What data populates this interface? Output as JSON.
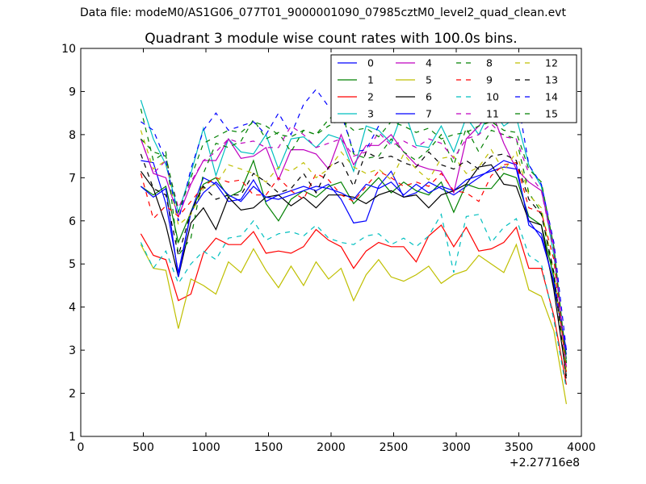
{
  "header": {
    "data_file": "Data file: modeM0/AS1G06_077T01_9000001090_07985cztM0_level2_quad_clean.evt"
  },
  "chart_data": {
    "type": "line",
    "title": "Quadrant 3 module wise count rates with 100.0s bins.",
    "xlabel": "",
    "ylabel": "",
    "xlim": [
      0,
      4000
    ],
    "ylim": [
      1,
      10
    ],
    "x_offset_label": "+2.27716e8",
    "x_ticks": [
      0,
      500,
      1000,
      1500,
      2000,
      2500,
      3000,
      3500,
      4000
    ],
    "y_ticks": [
      1,
      2,
      3,
      4,
      5,
      6,
      7,
      8,
      9,
      10
    ],
    "grid": false,
    "legend_position": "top-right",
    "x": [
      480,
      580,
      680,
      780,
      880,
      980,
      1080,
      1180,
      1280,
      1380,
      1480,
      1580,
      1680,
      1780,
      1880,
      1980,
      2080,
      2180,
      2280,
      2380,
      2480,
      2580,
      2680,
      2780,
      2880,
      2980,
      3080,
      3180,
      3280,
      3380,
      3480,
      3580,
      3680,
      3780,
      3880
    ],
    "series": [
      {
        "name": "0",
        "color": "#0000ff",
        "dash": "solid",
        "values": [
          7.4,
          7.35,
          6.4,
          4.8,
          6.2,
          7.0,
          6.85,
          6.45,
          6.5,
          6.95,
          6.45,
          6.6,
          6.7,
          6.8,
          6.7,
          6.85,
          6.5,
          5.95,
          6.0,
          6.8,
          7.15,
          6.55,
          6.65,
          6.9,
          6.75,
          6.6,
          6.8,
          7.0,
          7.2,
          7.4,
          7.3,
          5.9,
          5.7,
          4.5,
          2.9
        ]
      },
      {
        "name": "1",
        "color": "#008000",
        "dash": "solid",
        "values": [
          6.8,
          6.6,
          6.8,
          5.5,
          6.2,
          6.85,
          7.0,
          6.55,
          6.7,
          7.4,
          6.4,
          6.0,
          6.5,
          6.7,
          6.55,
          6.8,
          6.9,
          6.4,
          6.7,
          7.0,
          6.65,
          6.9,
          6.7,
          6.6,
          6.9,
          6.2,
          6.85,
          6.75,
          6.75,
          7.1,
          7.0,
          6.1,
          5.9,
          4.7,
          2.8
        ]
      },
      {
        "name": "2",
        "color": "#ff0000",
        "dash": "solid",
        "values": [
          5.7,
          5.2,
          5.1,
          4.15,
          4.3,
          5.25,
          5.6,
          5.45,
          5.45,
          5.75,
          5.25,
          5.3,
          5.25,
          5.4,
          5.8,
          5.55,
          5.4,
          4.9,
          5.3,
          5.5,
          5.4,
          5.4,
          5.05,
          5.65,
          5.9,
          5.4,
          5.85,
          5.3,
          5.35,
          5.5,
          5.85,
          4.9,
          4.9,
          3.8,
          2.2
        ]
      },
      {
        "name": "3",
        "color": "#00bfbf",
        "dash": "solid",
        "values": [
          8.8,
          7.9,
          7.3,
          6.2,
          7.1,
          8.15,
          7.05,
          7.9,
          7.6,
          7.55,
          8.0,
          7.2,
          7.9,
          7.95,
          7.7,
          8.0,
          7.9,
          7.15,
          8.2,
          8.1,
          7.8,
          8.6,
          7.75,
          7.7,
          8.2,
          7.6,
          8.4,
          8.0,
          8.6,
          8.2,
          8.4,
          7.3,
          6.8,
          5.2,
          2.7
        ]
      },
      {
        "name": "4",
        "color": "#bf00bf",
        "dash": "solid",
        "values": [
          7.9,
          7.1,
          7.0,
          6.1,
          6.85,
          7.4,
          7.4,
          7.9,
          7.45,
          7.5,
          7.7,
          6.95,
          7.65,
          7.65,
          7.55,
          7.2,
          8.0,
          7.3,
          7.75,
          7.75,
          8.0,
          7.6,
          7.3,
          7.2,
          7.15,
          6.65,
          7.9,
          8.2,
          8.55,
          7.8,
          7.2,
          6.9,
          6.7,
          5.4,
          2.6
        ]
      },
      {
        "name": "5",
        "color": "#bfbf00",
        "dash": "solid",
        "values": [
          5.45,
          4.9,
          4.85,
          3.5,
          4.65,
          4.5,
          4.3,
          5.05,
          4.8,
          5.35,
          4.85,
          4.45,
          4.95,
          4.5,
          5.05,
          4.65,
          4.9,
          4.15,
          4.75,
          5.1,
          4.7,
          4.6,
          4.75,
          4.95,
          4.55,
          4.75,
          4.85,
          5.2,
          5.0,
          4.8,
          5.45,
          4.4,
          4.25,
          3.45,
          1.75
        ]
      },
      {
        "name": "6",
        "color": "#000000",
        "dash": "solid",
        "values": [
          7.15,
          6.75,
          5.9,
          4.7,
          5.95,
          6.3,
          5.8,
          6.55,
          6.25,
          6.3,
          6.55,
          6.6,
          6.35,
          6.55,
          6.3,
          6.6,
          6.6,
          6.55,
          6.4,
          6.6,
          6.7,
          6.55,
          6.6,
          6.3,
          6.6,
          6.7,
          6.85,
          7.25,
          7.3,
          6.85,
          6.8,
          6.0,
          5.9,
          4.4,
          2.4
        ]
      },
      {
        "name": "7",
        "color": "#0000ff",
        "dash": "solid",
        "values": [
          6.8,
          6.55,
          6.75,
          4.7,
          6.2,
          6.65,
          6.9,
          6.6,
          6.45,
          6.8,
          6.55,
          6.5,
          6.6,
          6.7,
          6.8,
          6.75,
          6.65,
          6.5,
          6.85,
          6.75,
          6.9,
          6.6,
          6.85,
          6.65,
          6.8,
          6.7,
          6.95,
          7.05,
          7.15,
          7.25,
          7.2,
          6.0,
          5.6,
          4.6,
          3.0
        ]
      },
      {
        "name": "8",
        "color": "#008000",
        "dash": "dashed",
        "values": [
          8.6,
          7.4,
          7.6,
          5.2,
          5.6,
          7.1,
          7.8,
          7.7,
          7.85,
          8.35,
          7.9,
          8.05,
          7.6,
          8.1,
          8.0,
          8.35,
          8.6,
          7.55,
          7.45,
          7.5,
          7.9,
          7.6,
          7.4,
          7.65,
          8.0,
          7.3,
          8.15,
          7.6,
          8.1,
          8.0,
          7.9,
          6.65,
          6.2,
          4.7,
          2.6
        ]
      },
      {
        "name": "9",
        "color": "#ff0000",
        "dash": "dashed",
        "values": [
          7.1,
          6.05,
          6.35,
          6.1,
          6.45,
          6.8,
          7.0,
          6.9,
          6.95,
          6.6,
          6.6,
          7.0,
          6.7,
          6.5,
          7.1,
          6.95,
          6.6,
          6.45,
          6.8,
          7.15,
          7.0,
          6.8,
          6.9,
          6.8,
          7.1,
          6.7,
          6.65,
          6.45,
          7.05,
          7.3,
          7.35,
          6.3,
          6.2,
          5.1,
          2.5
        ]
      },
      {
        "name": "10",
        "color": "#00bfbf",
        "dash": "dashed",
        "values": [
          5.5,
          4.9,
          5.3,
          4.55,
          5.0,
          5.3,
          5.1,
          5.6,
          5.65,
          6.0,
          5.55,
          5.7,
          5.75,
          5.65,
          5.9,
          5.6,
          5.5,
          5.45,
          5.65,
          5.7,
          5.45,
          5.6,
          5.4,
          5.65,
          6.15,
          4.8,
          6.1,
          6.15,
          5.5,
          5.85,
          6.05,
          5.2,
          5.0,
          3.7,
          2.1
        ]
      },
      {
        "name": "11",
        "color": "#bf00bf",
        "dash": "dashed",
        "values": [
          7.9,
          7.1,
          7.4,
          6.3,
          6.9,
          7.4,
          7.6,
          7.9,
          7.8,
          7.85,
          7.7,
          7.7,
          8.2,
          8.0,
          7.7,
          7.8,
          7.9,
          7.5,
          7.6,
          8.05,
          7.75,
          7.85,
          7.7,
          7.9,
          7.8,
          7.45,
          7.9,
          8.0,
          8.25,
          7.95,
          7.9,
          7.1,
          6.7,
          5.3,
          2.6
        ]
      },
      {
        "name": "12",
        "color": "#bfbf00",
        "dash": "dashed",
        "values": [
          8.1,
          7.2,
          7.4,
          5.9,
          6.15,
          6.75,
          6.85,
          7.3,
          7.2,
          7.1,
          6.9,
          7.25,
          7.15,
          7.35,
          7.0,
          7.2,
          7.6,
          7.25,
          7.1,
          7.2,
          6.95,
          7.55,
          7.2,
          6.95,
          7.45,
          7.5,
          7.1,
          7.25,
          7.65,
          7.15,
          7.6,
          6.6,
          6.3,
          4.8,
          2.5
        ]
      },
      {
        "name": "13",
        "color": "#000000",
        "dash": "dashed",
        "values": [
          7.55,
          6.75,
          6.6,
          5.2,
          6.2,
          6.8,
          6.5,
          6.6,
          6.6,
          7.1,
          6.9,
          6.65,
          6.75,
          7.1,
          6.65,
          7.25,
          7.4,
          6.8,
          7.6,
          7.45,
          7.5,
          7.35,
          7.25,
          7.6,
          7.3,
          7.2,
          7.4,
          7.2,
          7.5,
          7.55,
          7.4,
          6.5,
          6.15,
          4.8,
          2.3
        ]
      },
      {
        "name": "14",
        "color": "#0000ff",
        "dash": "dashed",
        "values": [
          8.3,
          8.1,
          7.4,
          6.0,
          7.2,
          8.1,
          8.5,
          8.1,
          8.2,
          8.3,
          8.0,
          8.5,
          8.0,
          8.7,
          9.05,
          8.65,
          8.5,
          7.6,
          7.65,
          8.2,
          8.95,
          8.5,
          8.9,
          8.75,
          8.75,
          8.3,
          9.45,
          8.85,
          9.0,
          8.95,
          9.0,
          7.3,
          6.85,
          5.5,
          3.0
        ]
      },
      {
        "name": "15",
        "color": "#008000",
        "dash": "dashed",
        "values": [
          7.9,
          7.6,
          7.5,
          6.2,
          7.0,
          7.8,
          7.95,
          8.1,
          8.05,
          8.3,
          8.2,
          8.0,
          7.95,
          8.1,
          8.0,
          8.2,
          8.35,
          8.1,
          8.15,
          7.95,
          8.3,
          8.2,
          8.05,
          8.15,
          7.9,
          8.0,
          8.05,
          8.2,
          8.3,
          8.1,
          8.05,
          7.2,
          6.9,
          5.4,
          2.7
        ]
      }
    ]
  }
}
